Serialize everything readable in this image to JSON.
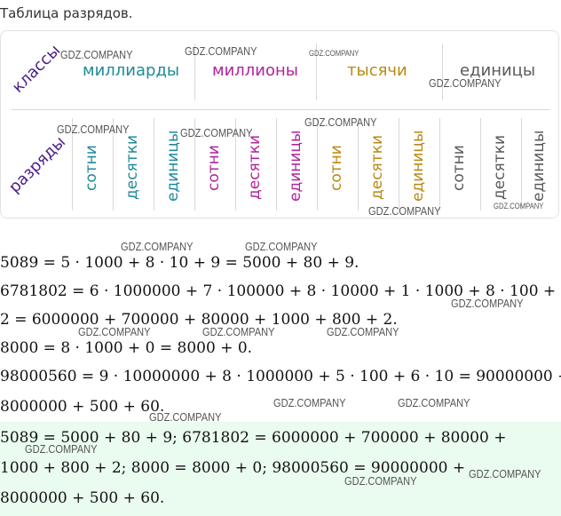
{
  "heading": "Таблица разрядов.",
  "table": {
    "classes_label": "классы",
    "ranks_label": "разряды",
    "classes": [
      {
        "name": "миллиарды",
        "color": "#1f8a9a"
      },
      {
        "name": "миллионы",
        "color": "#b0249c"
      },
      {
        "name": "тысячи",
        "color": "#b88a12"
      },
      {
        "name": "единицы",
        "color": "#5a5a5a"
      }
    ],
    "ranks": [
      {
        "name": "сотни",
        "color": "#1f8a9a"
      },
      {
        "name": "десятки",
        "color": "#1f8a9a"
      },
      {
        "name": "единицы",
        "color": "#1f8a9a"
      },
      {
        "name": "сотни",
        "color": "#b0249c"
      },
      {
        "name": "десятки",
        "color": "#b0249c"
      },
      {
        "name": "единицы",
        "color": "#b0249c"
      },
      {
        "name": "сотни",
        "color": "#b88a12"
      },
      {
        "name": "десятки",
        "color": "#b88a12"
      },
      {
        "name": "единицы",
        "color": "#b88a12"
      },
      {
        "name": "сотни",
        "color": "#5a5a5a"
      },
      {
        "name": "десятки",
        "color": "#5a5a5a"
      },
      {
        "name": "единицы",
        "color": "#5a5a5a"
      }
    ]
  },
  "solution_lines": [
    "5089 = 5 · 1000 + 8 · 10 + 9 = 5000 + 80 + 9.",
    "6781802 = 6 · 1000000 + 7 · 100000 + 8 · 10000 + 1 · 1000 + 8 · 100 +",
    "2 = 6000000 + 700000 + 80000 + 1000 + 800 + 2.",
    "8000 = 8 · 1000 + 0 = 8000 + 0.",
    "98000560 = 9 · 10000000 + 8 · 1000000 + 5 · 100 + 6 · 10 = 90000000 +",
    "8000000 + 500 + 60."
  ],
  "answer_lines": [
    "5089 = 5000 + 80 + 9; 6781802 = 6000000 + 700000 + 80000 +",
    "1000 + 800 + 2; 8000 = 8000 + 0; 98000560 = 90000000 +",
    "8000000 + 500 + 60."
  ],
  "watermark": "GDZ.COMPANY"
}
